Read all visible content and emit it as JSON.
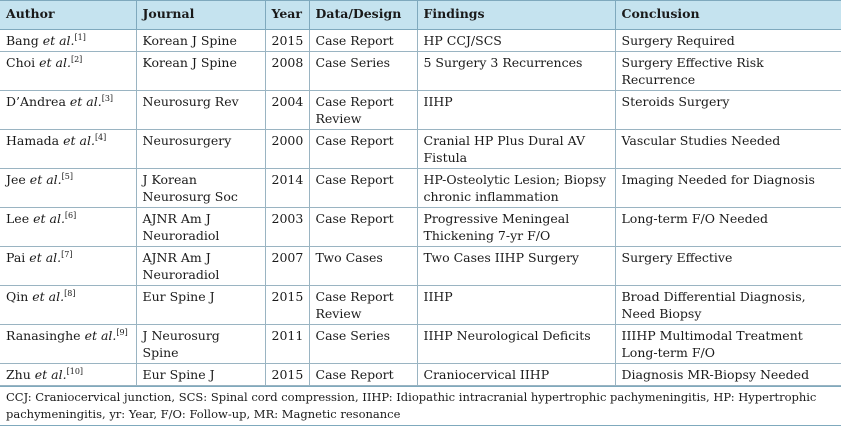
{
  "headers": [
    "Author",
    "Journal",
    "Year",
    "Data/Design",
    "Findings",
    "Conclusion"
  ],
  "rows": [
    {
      "author": "Bang",
      "etal": "et al.",
      "ref": "[1]",
      "journal": "Korean J Spine",
      "year": "2015",
      "design": "Case Report",
      "findings": "HP CCJ/SCS",
      "conclusion": "Surgery Required"
    },
    {
      "author": "Choi",
      "etal": "et al.",
      "ref": "[2]",
      "journal": "Korean J Spine",
      "year": "2008",
      "design": "Case Series",
      "findings": "5 Surgery 3 Recurrences",
      "conclusion": "Surgery Effective Risk Recurrence"
    },
    {
      "author": "D’Andrea",
      "etal": "et al.",
      "ref": "[3]",
      "journal": "Neurosurg Rev",
      "year": "2004",
      "design": "Case Report Review",
      "findings": "IIHP",
      "conclusion": "Steroids Surgery"
    },
    {
      "author": "Hamada",
      "etal": "et al.",
      "ref": "[4]",
      "journal": "Neurosurgery",
      "year": "2000",
      "design": "Case Report",
      "findings": "Cranial HP Plus Dural AV Fistula",
      "conclusion": "Vascular Studies Needed"
    },
    {
      "author": "Jee",
      "etal": "et al.",
      "ref": "[5]",
      "journal": "J Korean Neurosurg Soc",
      "year": "2014",
      "design": "Case Report",
      "findings": "HP-Osteolytic Lesion; Biopsy chronic inflammation",
      "conclusion": "Imaging Needed for Diagnosis"
    },
    {
      "author": "Lee",
      "etal": "et al.",
      "ref": "[6]",
      "journal": "AJNR Am J Neuroradiol",
      "year": "2003",
      "design": "Case Report",
      "findings": "Progressive Meningeal Thickening 7-yr F/O",
      "conclusion": "Long-term F/O Needed"
    },
    {
      "author": "Pai",
      "etal": "et al.",
      "ref": "[7]",
      "journal": "AJNR Am J Neuroradiol",
      "year": "2007",
      "design": "Two Cases",
      "findings": "Two Cases IIHP Surgery",
      "conclusion": "Surgery Effective"
    },
    {
      "author": "Qin",
      "etal": "et al.",
      "ref": "[8]",
      "journal": "Eur Spine J",
      "year": "2015",
      "design": "Case Report Review",
      "findings": "IIHP",
      "conclusion": "Broad Differential Diagnosis, Need Biopsy"
    },
    {
      "author": "Ranasinghe",
      "etal": "et al.",
      "ref": "[9]",
      "journal": "J Neurosurg Spine",
      "year": "2011",
      "design": "Case Series",
      "findings": "IIHP Neurological Deficits",
      "conclusion": "IIIHP Multimodal Treatment Long-term F/O"
    },
    {
      "author": "Zhu",
      "etal": "et al.",
      "ref": "[10]",
      "journal": "Eur Spine J",
      "year": "2015",
      "design": "Case Report",
      "findings": "Craniocervical IIHP",
      "conclusion": "Diagnosis MR-Biopsy Needed"
    }
  ],
  "footnote": "CCJ: Craniocervical junction, SCS: Spinal cord compression, IIHP: Idiopathic intracranial hypertrophic pachymeningitis, HP: Hypertrophic pachymeningitis, yr: Year, F/O: Follow-up, MR: Magnetic resonance"
}
